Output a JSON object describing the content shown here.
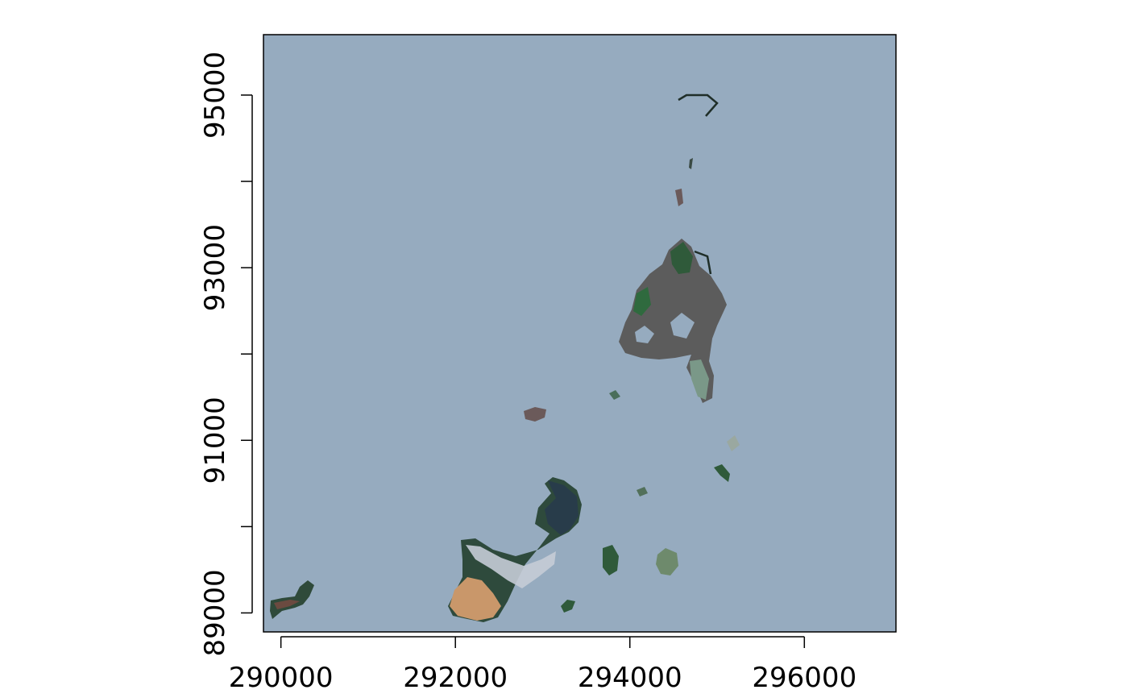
{
  "map": {
    "type": "raster",
    "crs_units": "projected coordinates",
    "xlim": [
      289800,
      297050
    ],
    "ylim": [
      88780,
      95700
    ],
    "x_ticks": [
      290000,
      292000,
      294000,
      296000
    ],
    "x_tick_labels": [
      "290000",
      "292000",
      "294000",
      "296000"
    ],
    "y_ticks": [
      89000,
      90000,
      91000,
      92000,
      93000,
      94000,
      95000
    ],
    "y_tick_labels": [
      "89000",
      "91000",
      "93000",
      "95000"
    ],
    "y_labeled_ticks": [
      89000,
      91000,
      93000,
      95000
    ],
    "colors": {
      "water_background": "#96abbf",
      "frame": "#000000",
      "forest_dark": "#23382b",
      "vegetation_green": "#2f5a3a",
      "bare_soil": "#6b5a5a",
      "built_up_light": "#c8ccd4",
      "sand_orange": "#d7a77a"
    }
  }
}
